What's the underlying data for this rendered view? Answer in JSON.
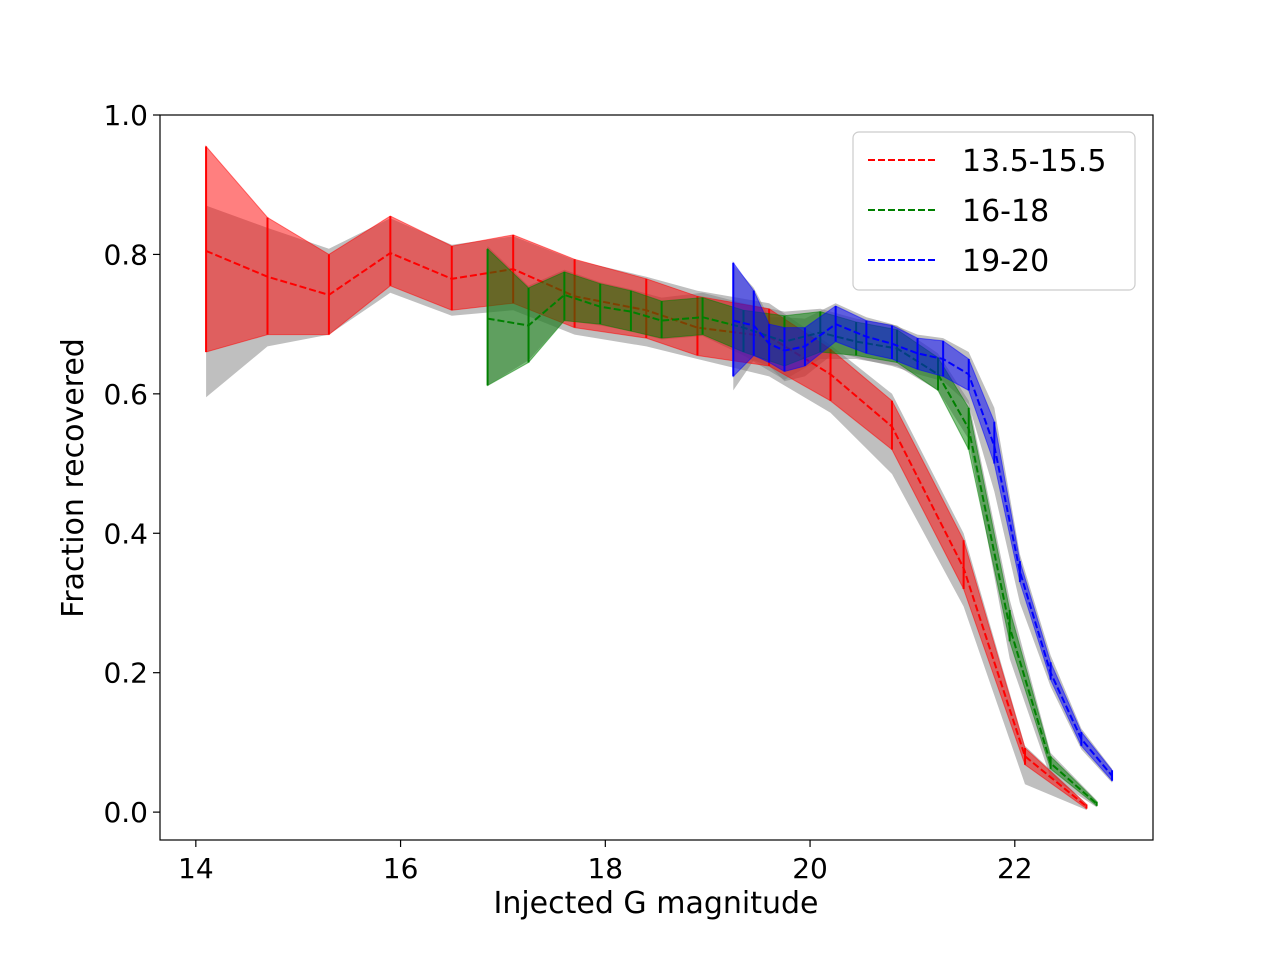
{
  "chart_data": {
    "type": "area",
    "title": "",
    "xlabel": "Injected G magnitude",
    "ylabel": "Fraction recovered",
    "xlim": [
      13.65,
      23.35
    ],
    "ylim": [
      -0.04,
      1.0
    ],
    "xticks": [
      {
        "value": 14,
        "label": "14"
      },
      {
        "value": 16,
        "label": "16"
      },
      {
        "value": 18,
        "label": "18"
      },
      {
        "value": 20,
        "label": "20"
      },
      {
        "value": 22,
        "label": "22"
      }
    ],
    "yticks": [
      {
        "value": 0.0,
        "label": "0.0"
      },
      {
        "value": 0.2,
        "label": "0.2"
      },
      {
        "value": 0.4,
        "label": "0.4"
      },
      {
        "value": 0.6,
        "label": "0.6"
      },
      {
        "value": 0.8,
        "label": "0.8"
      },
      {
        "value": 1.0,
        "label": "1.0"
      }
    ],
    "legend_position": "top-right",
    "series": [
      {
        "name": "13.5-15.5",
        "color": "#ff0000",
        "x": [
          14.1,
          14.7,
          15.3,
          15.9,
          16.5,
          17.1,
          17.7,
          18.4,
          18.9,
          19.6,
          20.2,
          20.8,
          21.5,
          22.1,
          22.7
        ],
        "y": [
          0.805,
          0.768,
          0.742,
          0.802,
          0.765,
          0.779,
          0.74,
          0.72,
          0.695,
          0.682,
          0.628,
          0.553,
          0.35,
          0.08,
          0.008
        ],
        "lower": [
          0.66,
          0.685,
          0.685,
          0.755,
          0.72,
          0.73,
          0.695,
          0.68,
          0.655,
          0.64,
          0.59,
          0.52,
          0.32,
          0.068,
          0.005
        ],
        "upper": [
          0.955,
          0.853,
          0.8,
          0.855,
          0.812,
          0.828,
          0.793,
          0.765,
          0.74,
          0.722,
          0.664,
          0.59,
          0.39,
          0.092,
          0.011
        ],
        "ref_lower": [
          0.595,
          0.668,
          0.685,
          0.745,
          0.712,
          0.72,
          0.685,
          0.668,
          0.65,
          0.625,
          0.573,
          0.485,
          0.295,
          0.04,
          0.003
        ],
        "ref_upper": [
          0.87,
          0.838,
          0.808,
          0.852,
          0.814,
          0.826,
          0.792,
          0.768,
          0.748,
          0.73,
          0.67,
          0.6,
          0.4,
          0.095,
          0.012
        ]
      },
      {
        "name": "16-18",
        "color": "#008000",
        "x": [
          16.85,
          17.25,
          17.6,
          17.95,
          18.25,
          18.55,
          18.95,
          19.35,
          19.75,
          20.1,
          20.45,
          20.85,
          21.25,
          21.55,
          21.95,
          22.35,
          22.8
        ],
        "y": [
          0.708,
          0.698,
          0.742,
          0.725,
          0.718,
          0.705,
          0.71,
          0.695,
          0.675,
          0.688,
          0.675,
          0.665,
          0.628,
          0.55,
          0.265,
          0.07,
          0.012
        ],
        "lower": [
          0.612,
          0.645,
          0.705,
          0.7,
          0.69,
          0.68,
          0.685,
          0.66,
          0.64,
          0.66,
          0.655,
          0.645,
          0.605,
          0.52,
          0.245,
          0.062,
          0.009
        ],
        "upper": [
          0.808,
          0.752,
          0.775,
          0.758,
          0.748,
          0.733,
          0.738,
          0.72,
          0.712,
          0.718,
          0.703,
          0.692,
          0.652,
          0.58,
          0.29,
          0.08,
          0.015
        ],
        "ref_lower": [
          0.612,
          0.648,
          0.705,
          0.698,
          0.69,
          0.678,
          0.683,
          0.655,
          0.62,
          0.65,
          0.65,
          0.64,
          0.605,
          0.535,
          0.22,
          0.05,
          0.007
        ],
        "ref_upper": [
          0.812,
          0.755,
          0.778,
          0.76,
          0.75,
          0.738,
          0.745,
          0.73,
          0.718,
          0.722,
          0.708,
          0.698,
          0.658,
          0.59,
          0.305,
          0.085,
          0.017
        ]
      },
      {
        "name": "19-20",
        "color": "#0000ff",
        "x": [
          19.25,
          19.45,
          19.6,
          19.75,
          19.95,
          20.25,
          20.55,
          20.8,
          21.05,
          21.3,
          21.55,
          21.8,
          22.05,
          22.35,
          22.65,
          22.95
        ],
        "y": [
          0.705,
          0.698,
          0.672,
          0.662,
          0.668,
          0.7,
          0.682,
          0.672,
          0.658,
          0.65,
          0.628,
          0.525,
          0.345,
          0.2,
          0.105,
          0.052
        ],
        "lower": [
          0.625,
          0.655,
          0.645,
          0.632,
          0.64,
          0.675,
          0.658,
          0.65,
          0.635,
          0.625,
          0.605,
          0.5,
          0.33,
          0.19,
          0.095,
          0.045
        ],
        "upper": [
          0.788,
          0.748,
          0.7,
          0.695,
          0.695,
          0.726,
          0.705,
          0.698,
          0.68,
          0.676,
          0.65,
          0.56,
          0.36,
          0.215,
          0.115,
          0.06
        ],
        "ref_lower": [
          0.605,
          0.648,
          0.64,
          0.618,
          0.625,
          0.66,
          0.648,
          0.64,
          0.628,
          0.618,
          0.585,
          0.46,
          0.3,
          0.18,
          0.09,
          0.042
        ],
        "ref_upper": [
          0.785,
          0.752,
          0.71,
          0.71,
          0.708,
          0.73,
          0.71,
          0.7,
          0.685,
          0.68,
          0.66,
          0.58,
          0.37,
          0.225,
          0.12,
          0.062
        ]
      }
    ]
  }
}
